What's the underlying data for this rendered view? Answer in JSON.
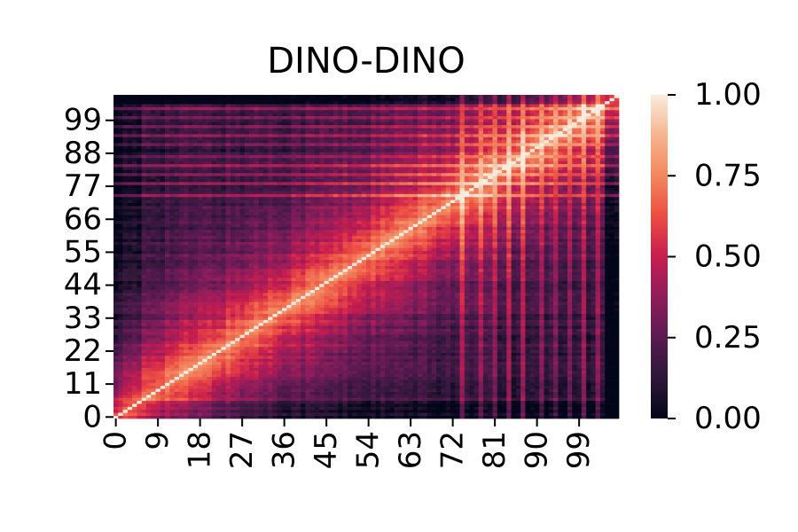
{
  "chart_data": {
    "type": "heatmap",
    "title": "DINO-DINO",
    "xlabel": "",
    "ylabel": "",
    "n": 108,
    "x_ticks": [
      "0",
      "9",
      "18",
      "27",
      "36",
      "45",
      "54",
      "63",
      "72",
      "81",
      "90",
      "99"
    ],
    "y_ticks": [
      "0",
      "11",
      "22",
      "33",
      "44",
      "55",
      "66",
      "77",
      "88",
      "99"
    ],
    "y_origin": "bottom",
    "diagonal_value": 1.0,
    "colorbar": {
      "range": [
        0.0,
        1.0
      ],
      "tick_labels": [
        "0.00",
        "0.25",
        "0.50",
        "0.75",
        "1.00"
      ],
      "colormap": "rocket",
      "colors": [
        "#03051a",
        "#2d1738",
        "#5a1a51",
        "#8e1d5b",
        "#c71d4f",
        "#ec4d43",
        "#f3865e",
        "#f6b48f",
        "#faebdd"
      ]
    },
    "approx_structure": {
      "near_diagonal_similarity": 0.78,
      "far_off_diagonal_similarity": 0.12,
      "note_bright_columns": [
        "74",
        "78",
        "81",
        "84",
        "87",
        "91",
        "94",
        "97",
        "100",
        "103"
      ],
      "note_dark_columns": [
        "105",
        "106",
        "107"
      ]
    }
  }
}
